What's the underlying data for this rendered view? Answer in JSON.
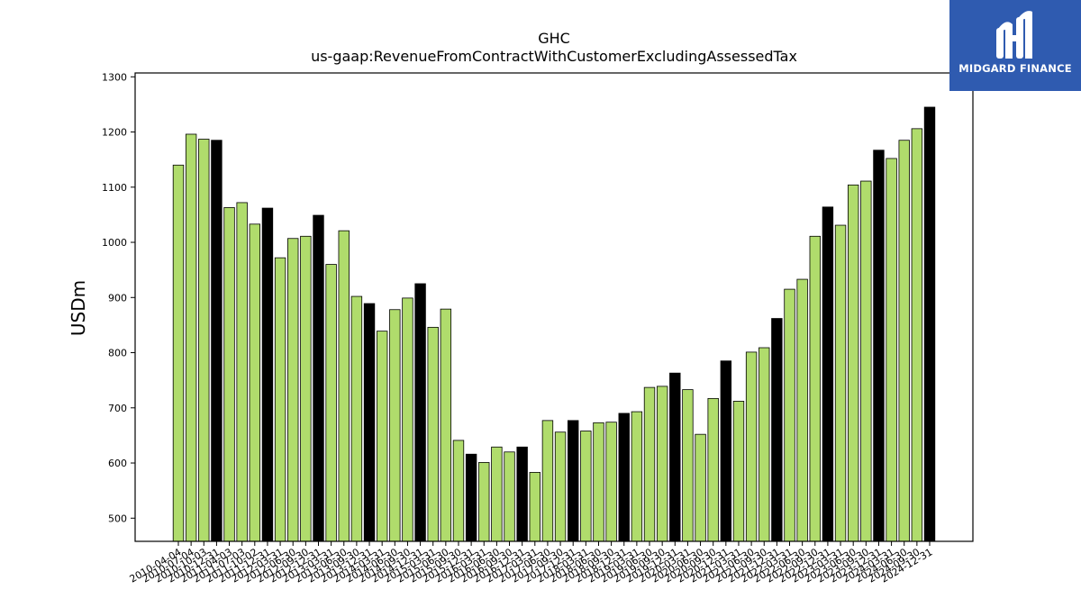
{
  "chart_data": {
    "type": "bar",
    "title": "GHC",
    "subtitle": "us-gaap:RevenueFromContractWithCustomerExcludingAssessedTax",
    "xlabel": "",
    "ylabel": "USDm",
    "ylim": [
      458,
      1307
    ],
    "yticks": [
      500,
      600,
      700,
      800,
      900,
      1000,
      1100,
      1200,
      1300
    ],
    "grid": false,
    "colors": {
      "quarter": "#b0dc6c",
      "annual": "#000000",
      "edge": "#000000"
    },
    "categories": [
      "2010-04-04",
      "2010-07-04",
      "2010-10-03",
      "2010-12-31",
      "2011-04-03",
      "2011-07-03",
      "2011-10-02",
      "2011-12-31",
      "2012-03-31",
      "2012-06-30",
      "2012-09-30",
      "2012-12-31",
      "2013-03-31",
      "2013-06-30",
      "2013-09-30",
      "2013-12-31",
      "2014-03-31",
      "2014-06-30",
      "2014-09-30",
      "2014-12-31",
      "2015-03-31",
      "2015-06-30",
      "2015-09-30",
      "2015-12-31",
      "2016-03-31",
      "2016-06-30",
      "2016-09-30",
      "2016-12-31",
      "2017-03-31",
      "2017-06-30",
      "2017-09-30",
      "2017-12-31",
      "2018-03-31",
      "2018-06-30",
      "2018-09-30",
      "2018-12-31",
      "2019-03-31",
      "2019-06-30",
      "2019-09-30",
      "2019-12-31",
      "2020-03-31",
      "2020-06-30",
      "2020-09-30",
      "2020-12-31",
      "2021-03-31",
      "2021-06-30",
      "2021-09-30",
      "2021-12-31",
      "2022-03-31",
      "2022-06-30",
      "2022-09-30",
      "2022-12-31",
      "2023-03-31",
      "2023-06-30",
      "2023-09-30",
      "2023-12-31",
      "2024-03-31",
      "2024-06-30",
      "2024-09-30",
      "2024-12-31"
    ],
    "values": [
      1140,
      1196,
      1187,
      1185,
      1063,
      1072,
      1033,
      1062,
      972,
      1007,
      1011,
      1049,
      960,
      1021,
      902,
      889,
      839,
      878,
      899,
      925,
      846,
      879,
      641,
      616,
      601,
      629,
      620,
      629,
      583,
      677,
      656,
      677,
      658,
      673,
      674,
      690,
      693,
      737,
      739,
      763,
      733,
      652,
      717,
      785,
      712,
      801,
      809,
      862,
      915,
      933,
      1011,
      1064,
      1031,
      1104,
      1111,
      1167,
      1152,
      1185,
      1206,
      1245
    ],
    "annual_flags": [
      false,
      false,
      false,
      true,
      false,
      false,
      false,
      true,
      false,
      false,
      false,
      true,
      false,
      false,
      false,
      true,
      false,
      false,
      false,
      true,
      false,
      false,
      false,
      true,
      false,
      false,
      false,
      true,
      false,
      false,
      false,
      true,
      false,
      false,
      false,
      true,
      false,
      false,
      false,
      true,
      false,
      false,
      false,
      true,
      false,
      false,
      false,
      true,
      false,
      false,
      false,
      true,
      false,
      false,
      false,
      true,
      false,
      false,
      false,
      true
    ]
  },
  "logo": {
    "text": "MIDGARD FINANCE"
  }
}
